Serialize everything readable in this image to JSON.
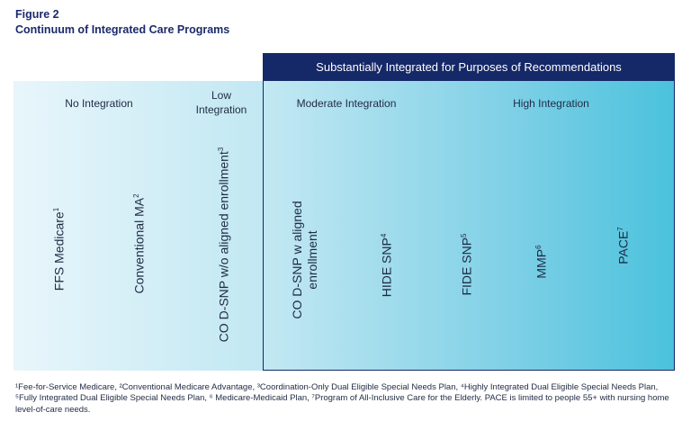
{
  "figure": {
    "label": "Figure 2",
    "title": "Continuum of Integrated Care Programs"
  },
  "header": {
    "integrated_label": "Substantially Integrated for Purposes of Recommendations"
  },
  "categories": {
    "no_integration": "No Integration",
    "low_integration": "Low Integration",
    "moderate_integration": "Moderate Integration",
    "high_integration": "High Integration"
  },
  "programs": [
    {
      "label": "FFS Medicare",
      "sup": "1"
    },
    {
      "label": "Conventional MA",
      "sup": "2"
    },
    {
      "label": "CO D-SNP w/o aligned enrollment",
      "sup": "3"
    },
    {
      "label": "CO D-SNP w aligned",
      "label2": "enrollment"
    },
    {
      "label": "HIDE SNP",
      "sup": "4"
    },
    {
      "label": "FIDE SNP",
      "sup": "5"
    },
    {
      "label": "MMP",
      "sup": "6"
    },
    {
      "label": "PACE",
      "sup": "7"
    }
  ],
  "footnote": "¹Fee-for-Service Medicare, ²Conventional Medicare Advantage, ³Coordination-Only Dual Eligible Special Needs Plan, ⁴Highly Integrated Dual Eligible Special Needs Plan, ⁵Fully Integrated Dual Eligible Special Needs Plan, ⁶ Medicare-Medicaid Plan, ⁷Program of All-Inclusive Care for the Elderly. PACE is limited to people 55+ with nursing home level-of-care needs.",
  "colors": {
    "navy": "#152867",
    "band_start": "#e8f6fb",
    "band_end": "#4bc2dd"
  }
}
